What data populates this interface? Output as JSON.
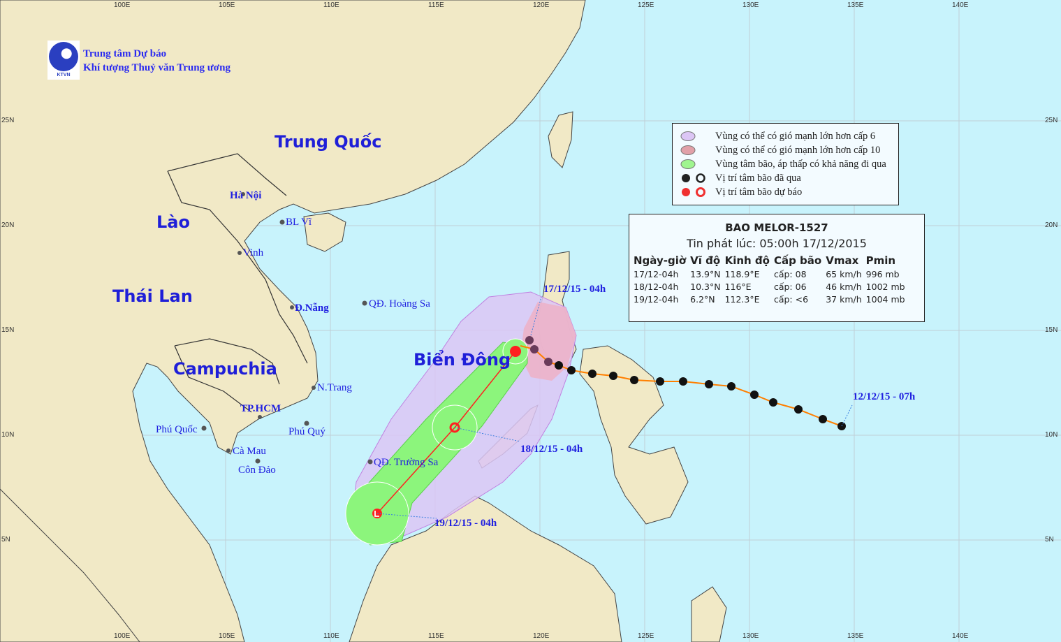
{
  "logo": {
    "line1": "Trung tâm Dự báo",
    "line2": "Khí tượng Thuỷ văn Trung ương",
    "badge": "KTVN"
  },
  "colors": {
    "sea": "#c8f3fc",
    "land": "#f1e9c6",
    "border": "#222222",
    "wind6": "#dcc6f5",
    "wind10": "#ecb3c9",
    "cone": "#8cf57c",
    "track_past": "#ff7f00",
    "forecast": "#ff2020"
  },
  "grid": {
    "lon_labels": [
      "100E",
      "105E",
      "110E",
      "115E",
      "120E",
      "125E",
      "130E",
      "135E",
      "140E"
    ],
    "lat_labels": [
      "25N",
      "20N",
      "15N",
      "10N",
      "5N"
    ]
  },
  "countries": [
    {
      "name": "Trung Quốc"
    },
    {
      "name": "Lào"
    },
    {
      "name": "Thái Lan"
    },
    {
      "name": "Campuchia"
    },
    {
      "name": "Biển Đông"
    }
  ],
  "places": [
    "Hà Nội",
    "BL Vĩ",
    "Vinh",
    "Đ.Nẵng",
    "QĐ. Hoàng Sa",
    "N.Trang",
    "TP.HCM",
    "Phú Quốc",
    "Phú Quý",
    "Cà Mau",
    "Côn Đảo",
    "QĐ. Trường Sa"
  ],
  "track_labels": [
    "17/12/15 - 04h",
    "18/12/15 - 04h",
    "19/12/15 - 04h",
    "12/12/15 - 07h"
  ],
  "legend": [
    {
      "label": "Vùng có thể có gió mạnh lớn hơn cấp 6",
      "icon": "purple-ellipse"
    },
    {
      "label": "Vùng có thể có gió mạnh lớn hơn cấp 10",
      "icon": "pink-ellipse"
    },
    {
      "label": "Vùng tâm bão, áp thấp có khả năng đi qua",
      "icon": "green-ellipse"
    },
    {
      "label": "Vị trí tâm bão đã qua",
      "icon": "black-typhoon-and-circle"
    },
    {
      "label": "Vị trí tâm bão dự báo",
      "icon": "red-typhoon-and-circle"
    }
  ],
  "info": {
    "title": "BAO MELOR-1527",
    "issued": "Tin phát lúc: 05:00h 17/12/2015",
    "headers": [
      "Ngày-giờ",
      "Vĩ độ",
      "Kinh độ",
      "Cấp bão",
      "Vmax",
      "Pmin"
    ],
    "rows": [
      [
        "17/12-04h",
        "13.9°N",
        "118.9°E",
        "cấp: 08",
        "65 km/h",
        "996 mb"
      ],
      [
        "18/12-04h",
        "10.3°N",
        "116°E",
        "cấp: 06",
        "46 km/h",
        "1002 mb"
      ],
      [
        "19/12-04h",
        "6.2°N",
        "112.3°E",
        "cấp: <6",
        "37 km/h",
        "1004 mb"
      ]
    ]
  }
}
